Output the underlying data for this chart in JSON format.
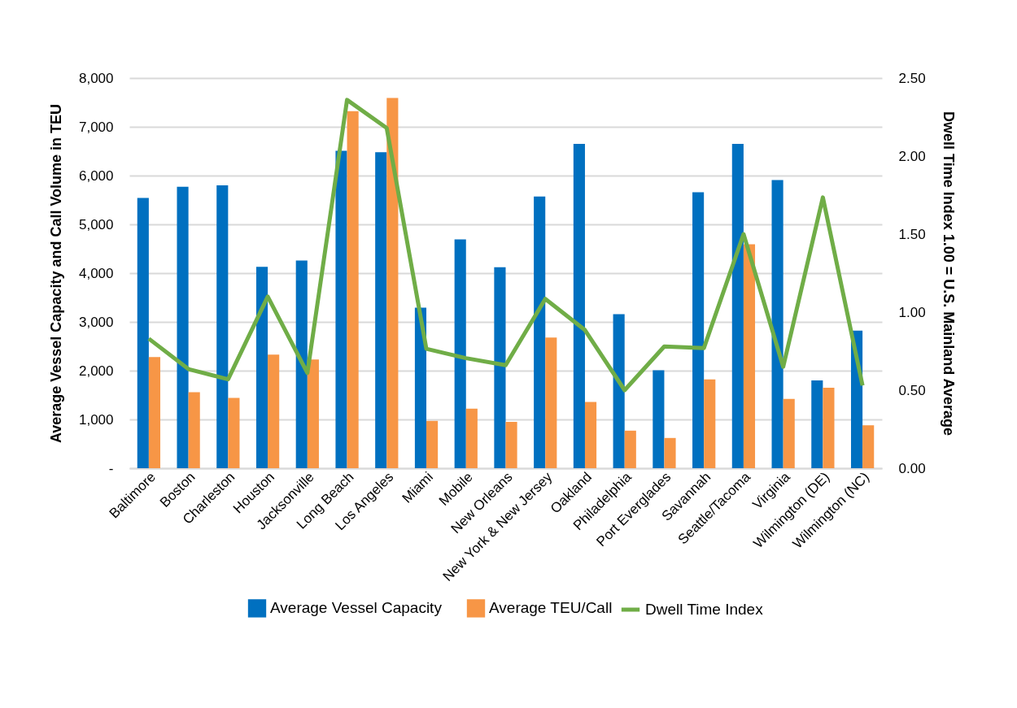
{
  "chart_data": {
    "type": "bar",
    "ylabel": "Average Vessel Capacity and Call Volume in TEU",
    "y2label": "Dwell Time Index  1.00 = U.S. Mainland Average",
    "categories": [
      "Baltimore",
      "Boston",
      "Charleston",
      "Houston",
      "Jacksonville",
      "Long Beach",
      "Los Angeles",
      "Miami",
      "Mobile",
      "New Orleans",
      "New York & New Jersey",
      "Oakland",
      "Philadelphia",
      "Port Everglades",
      "Savannah",
      "Seattle/Tacoma",
      "Virginia",
      "Wilmington (DE)",
      "Wilmington (NC)"
    ],
    "series": [
      {
        "name": "Average Vessel Capacity",
        "color": "#0070c0",
        "values": [
          5540,
          5770,
          5800,
          4130,
          4260,
          6510,
          6480,
          3290,
          4690,
          4120,
          5570,
          6650,
          3160,
          2010,
          5660,
          6650,
          5910,
          1800,
          2820
        ]
      },
      {
        "name": "Average TEU/Call",
        "color": "#f79646",
        "values": [
          2280,
          1560,
          1440,
          2330,
          2230,
          7320,
          7590,
          970,
          1220,
          950,
          2680,
          1360,
          770,
          620,
          1820,
          4590,
          1420,
          1650,
          880
        ]
      },
      {
        "name": "Dwell Time Index",
        "type": "line",
        "axis": "y2",
        "color": "#70ad47",
        "values": [
          0.83,
          0.635,
          0.57,
          1.1,
          0.61,
          2.36,
          2.18,
          0.765,
          0.705,
          0.66,
          1.085,
          0.885,
          0.5,
          0.78,
          0.77,
          1.5,
          0.65,
          1.735,
          0.53
        ]
      }
    ],
    "ylim": [
      0,
      8000
    ],
    "yticks": [
      {
        "value": 0,
        "label": "-"
      },
      {
        "value": 1000,
        "label": "1,000"
      },
      {
        "value": 2000,
        "label": "2,000"
      },
      {
        "value": 3000,
        "label": "3,000"
      },
      {
        "value": 4000,
        "label": "4,000"
      },
      {
        "value": 5000,
        "label": "5,000"
      },
      {
        "value": 6000,
        "label": "6,000"
      },
      {
        "value": 7000,
        "label": "7,000"
      },
      {
        "value": 8000,
        "label": "8,000"
      }
    ],
    "y2lim": [
      0,
      2.5
    ],
    "y2ticks": [
      {
        "value": 0,
        "label": "0.00"
      },
      {
        "value": 0.5,
        "label": "0.50"
      },
      {
        "value": 1,
        "label": "1.00"
      },
      {
        "value": 1.5,
        "label": "1.50"
      },
      {
        "value": 2,
        "label": "2.00"
      },
      {
        "value": 2.5,
        "label": "2.50"
      }
    ],
    "grid": "y",
    "legend": "bottom"
  }
}
